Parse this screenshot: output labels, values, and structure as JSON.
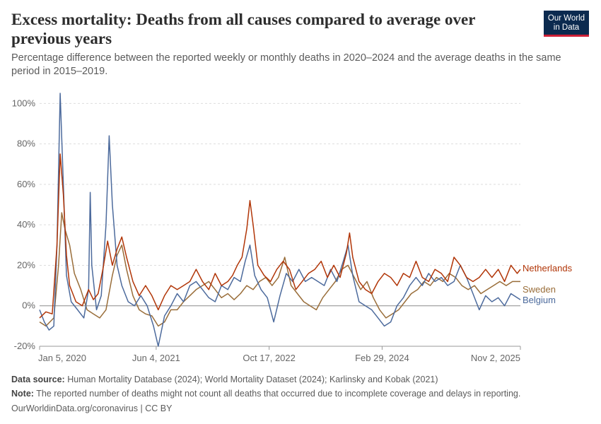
{
  "header": {
    "title": "Excess mortality: Deaths from all causes compared to average over previous years",
    "subtitle": "Percentage difference between the reported weekly or monthly deaths in 2020–2024 and the average deaths in the same period in 2015–2019.",
    "logo_line1": "Our World",
    "logo_line2": "in Data"
  },
  "footer": {
    "source_label": "Data source:",
    "source_text": "Human Mortality Database (2024); World Mortality Dataset (2024); Karlinsky and Kobak (2021)",
    "note_label": "Note:",
    "note_text": "The reported number of deaths might not count all deaths that occurred due to incomplete coverage and delays in reporting.",
    "credit": "OurWorldinData.org/coronavirus | CC BY"
  },
  "colors": {
    "Netherlands": "#b13507",
    "Sweden": "#996d39",
    "Belgium": "#4c6a9c"
  },
  "chart_data": {
    "type": "line",
    "x_axis": {
      "start": "2020-01-05",
      "end": "2025-11-02",
      "tick_labels": [
        "Jan 5, 2020",
        "Jun 4, 2021",
        "Oct 17, 2022",
        "Feb 29, 2024",
        "Nov 2, 2025"
      ],
      "tick_dates": [
        "2020-01-05",
        "2021-06-04",
        "2022-10-17",
        "2024-02-29",
        "2025-11-02"
      ]
    },
    "y_axis": {
      "ylim": [
        -20,
        105
      ],
      "ticks": [
        -20,
        0,
        20,
        40,
        60,
        80,
        100
      ],
      "tick_labels": [
        "-20%",
        "0%",
        "20%",
        "40%",
        "60%",
        "80%",
        "100%"
      ]
    },
    "grid": "horizontal-dashed",
    "legend": "end-labels-right",
    "series": [
      {
        "name": "Netherlands",
        "points": [
          [
            "2020-01-05",
            -6
          ],
          [
            "2020-02-02",
            -3
          ],
          [
            "2020-03-01",
            -4
          ],
          [
            "2020-03-22",
            30
          ],
          [
            "2020-04-05",
            75
          ],
          [
            "2020-04-19",
            55
          ],
          [
            "2020-05-03",
            25
          ],
          [
            "2020-05-17",
            10
          ],
          [
            "2020-06-14",
            2
          ],
          [
            "2020-07-12",
            0
          ],
          [
            "2020-08-09",
            8
          ],
          [
            "2020-08-30",
            3
          ],
          [
            "2020-09-20",
            6
          ],
          [
            "2020-10-11",
            18
          ],
          [
            "2020-11-01",
            32
          ],
          [
            "2020-11-22",
            20
          ],
          [
            "2020-12-13",
            28
          ],
          [
            "2021-01-03",
            34
          ],
          [
            "2021-01-24",
            24
          ],
          [
            "2021-02-21",
            12
          ],
          [
            "2021-03-21",
            5
          ],
          [
            "2021-04-18",
            10
          ],
          [
            "2021-05-16",
            5
          ],
          [
            "2021-06-13",
            -2
          ],
          [
            "2021-07-11",
            5
          ],
          [
            "2021-08-08",
            10
          ],
          [
            "2021-09-05",
            8
          ],
          [
            "2021-10-03",
            10
          ],
          [
            "2021-10-31",
            12
          ],
          [
            "2021-11-28",
            18
          ],
          [
            "2021-12-26",
            12
          ],
          [
            "2022-01-23",
            8
          ],
          [
            "2022-02-20",
            16
          ],
          [
            "2022-03-20",
            10
          ],
          [
            "2022-04-17",
            12
          ],
          [
            "2022-05-08",
            15
          ],
          [
            "2022-05-29",
            20
          ],
          [
            "2022-06-19",
            24
          ],
          [
            "2022-07-10",
            38
          ],
          [
            "2022-07-24",
            52
          ],
          [
            "2022-08-07",
            40
          ],
          [
            "2022-08-28",
            20
          ],
          [
            "2022-09-25",
            15
          ],
          [
            "2022-10-23",
            12
          ],
          [
            "2022-11-20",
            18
          ],
          [
            "2022-12-18",
            22
          ],
          [
            "2023-01-15",
            18
          ],
          [
            "2023-02-12",
            8
          ],
          [
            "2023-03-12",
            12
          ],
          [
            "2023-04-09",
            16
          ],
          [
            "2023-05-07",
            18
          ],
          [
            "2023-06-04",
            22
          ],
          [
            "2023-07-02",
            14
          ],
          [
            "2023-07-30",
            20
          ],
          [
            "2023-08-27",
            14
          ],
          [
            "2023-09-24",
            26
          ],
          [
            "2023-10-08",
            36
          ],
          [
            "2023-10-22",
            24
          ],
          [
            "2023-11-19",
            12
          ],
          [
            "2023-12-17",
            8
          ],
          [
            "2024-01-14",
            6
          ],
          [
            "2024-02-11",
            12
          ],
          [
            "2024-03-10",
            16
          ],
          [
            "2024-04-07",
            14
          ],
          [
            "2024-05-05",
            10
          ],
          [
            "2024-06-02",
            16
          ],
          [
            "2024-06-30",
            14
          ],
          [
            "2024-07-28",
            22
          ],
          [
            "2024-08-25",
            14
          ],
          [
            "2024-09-22",
            12
          ],
          [
            "2024-10-20",
            18
          ],
          [
            "2024-11-17",
            16
          ],
          [
            "2024-12-15",
            12
          ],
          [
            "2025-01-12",
            24
          ],
          [
            "2025-02-09",
            20
          ],
          [
            "2025-03-09",
            14
          ],
          [
            "2025-04-06",
            12
          ],
          [
            "2025-05-04",
            14
          ],
          [
            "2025-06-01",
            18
          ],
          [
            "2025-06-29",
            14
          ],
          [
            "2025-07-27",
            18
          ],
          [
            "2025-08-24",
            12
          ],
          [
            "2025-09-21",
            20
          ],
          [
            "2025-10-19",
            16
          ],
          [
            "2025-11-02",
            18
          ]
        ]
      },
      {
        "name": "Sweden",
        "points": [
          [
            "2020-01-05",
            -8
          ],
          [
            "2020-02-02",
            -10
          ],
          [
            "2020-03-08",
            -6
          ],
          [
            "2020-03-29",
            20
          ],
          [
            "2020-04-12",
            46
          ],
          [
            "2020-04-26",
            38
          ],
          [
            "2020-05-17",
            30
          ],
          [
            "2020-06-07",
            16
          ],
          [
            "2020-07-05",
            8
          ],
          [
            "2020-08-02",
            -2
          ],
          [
            "2020-08-30",
            -4
          ],
          [
            "2020-09-27",
            -6
          ],
          [
            "2020-10-25",
            -2
          ],
          [
            "2020-11-22",
            15
          ],
          [
            "2020-12-13",
            25
          ],
          [
            "2021-01-03",
            30
          ],
          [
            "2021-01-24",
            18
          ],
          [
            "2021-02-21",
            5
          ],
          [
            "2021-03-21",
            -2
          ],
          [
            "2021-04-18",
            -4
          ],
          [
            "2021-05-16",
            -5
          ],
          [
            "2021-06-13",
            -10
          ],
          [
            "2021-07-11",
            -8
          ],
          [
            "2021-08-08",
            -2
          ],
          [
            "2021-09-05",
            -2
          ],
          [
            "2021-10-03",
            2
          ],
          [
            "2021-10-31",
            5
          ],
          [
            "2021-11-28",
            8
          ],
          [
            "2021-12-26",
            10
          ],
          [
            "2022-01-23",
            12
          ],
          [
            "2022-02-20",
            8
          ],
          [
            "2022-03-20",
            4
          ],
          [
            "2022-04-17",
            6
          ],
          [
            "2022-05-15",
            3
          ],
          [
            "2022-06-12",
            6
          ],
          [
            "2022-07-10",
            10
          ],
          [
            "2022-08-07",
            8
          ],
          [
            "2022-09-04",
            12
          ],
          [
            "2022-10-02",
            14
          ],
          [
            "2022-10-30",
            10
          ],
          [
            "2022-11-27",
            14
          ],
          [
            "2022-12-25",
            24
          ],
          [
            "2023-01-22",
            10
          ],
          [
            "2023-02-19",
            6
          ],
          [
            "2023-03-19",
            2
          ],
          [
            "2023-04-16",
            0
          ],
          [
            "2023-05-14",
            -2
          ],
          [
            "2023-06-11",
            4
          ],
          [
            "2023-07-09",
            8
          ],
          [
            "2023-08-06",
            12
          ],
          [
            "2023-09-03",
            18
          ],
          [
            "2023-10-01",
            20
          ],
          [
            "2023-10-29",
            14
          ],
          [
            "2023-11-26",
            8
          ],
          [
            "2023-12-24",
            12
          ],
          [
            "2024-01-21",
            4
          ],
          [
            "2024-02-18",
            -2
          ],
          [
            "2024-03-17",
            -6
          ],
          [
            "2024-04-14",
            -4
          ],
          [
            "2024-05-12",
            -2
          ],
          [
            "2024-06-09",
            2
          ],
          [
            "2024-07-07",
            6
          ],
          [
            "2024-08-04",
            8
          ],
          [
            "2024-09-01",
            12
          ],
          [
            "2024-09-29",
            10
          ],
          [
            "2024-10-27",
            14
          ],
          [
            "2024-11-24",
            12
          ],
          [
            "2024-12-22",
            16
          ],
          [
            "2025-01-19",
            14
          ],
          [
            "2025-02-16",
            10
          ],
          [
            "2025-03-16",
            8
          ],
          [
            "2025-04-13",
            10
          ],
          [
            "2025-05-11",
            6
          ],
          [
            "2025-06-08",
            8
          ],
          [
            "2025-07-06",
            10
          ],
          [
            "2025-08-03",
            12
          ],
          [
            "2025-08-31",
            10
          ],
          [
            "2025-09-28",
            12
          ],
          [
            "2025-11-02",
            12
          ]
        ]
      },
      {
        "name": "Belgium",
        "points": [
          [
            "2020-01-05",
            -2
          ],
          [
            "2020-01-26",
            -8
          ],
          [
            "2020-02-16",
            -12
          ],
          [
            "2020-03-08",
            -10
          ],
          [
            "2020-03-22",
            30
          ],
          [
            "2020-04-05",
            105
          ],
          [
            "2020-04-19",
            60
          ],
          [
            "2020-05-03",
            15
          ],
          [
            "2020-05-24",
            2
          ],
          [
            "2020-06-21",
            -2
          ],
          [
            "2020-07-19",
            -6
          ],
          [
            "2020-08-09",
            8
          ],
          [
            "2020-08-16",
            56
          ],
          [
            "2020-08-23",
            20
          ],
          [
            "2020-09-13",
            -2
          ],
          [
            "2020-10-04",
            5
          ],
          [
            "2020-10-25",
            40
          ],
          [
            "2020-11-08",
            84
          ],
          [
            "2020-11-22",
            50
          ],
          [
            "2020-12-13",
            20
          ],
          [
            "2021-01-03",
            10
          ],
          [
            "2021-01-31",
            2
          ],
          [
            "2021-02-28",
            0
          ],
          [
            "2021-03-28",
            5
          ],
          [
            "2021-04-25",
            0
          ],
          [
            "2021-05-23",
            -10
          ],
          [
            "2021-06-13",
            -20
          ],
          [
            "2021-07-11",
            -5
          ],
          [
            "2021-08-08",
            0
          ],
          [
            "2021-09-05",
            6
          ],
          [
            "2021-10-03",
            2
          ],
          [
            "2021-10-31",
            10
          ],
          [
            "2021-11-28",
            12
          ],
          [
            "2021-12-26",
            8
          ],
          [
            "2022-01-23",
            4
          ],
          [
            "2022-02-20",
            2
          ],
          [
            "2022-03-20",
            10
          ],
          [
            "2022-04-17",
            8
          ],
          [
            "2022-05-15",
            14
          ],
          [
            "2022-06-12",
            12
          ],
          [
            "2022-07-03",
            22
          ],
          [
            "2022-07-24",
            30
          ],
          [
            "2022-08-14",
            15
          ],
          [
            "2022-09-11",
            8
          ],
          [
            "2022-10-09",
            4
          ],
          [
            "2022-11-06",
            -8
          ],
          [
            "2022-12-04",
            5
          ],
          [
            "2023-01-01",
            16
          ],
          [
            "2023-01-29",
            12
          ],
          [
            "2023-02-26",
            18
          ],
          [
            "2023-03-26",
            12
          ],
          [
            "2023-04-23",
            14
          ],
          [
            "2023-05-21",
            12
          ],
          [
            "2023-06-18",
            10
          ],
          [
            "2023-07-16",
            18
          ],
          [
            "2023-08-13",
            12
          ],
          [
            "2023-09-10",
            22
          ],
          [
            "2023-10-01",
            30
          ],
          [
            "2023-10-22",
            15
          ],
          [
            "2023-11-19",
            2
          ],
          [
            "2023-12-17",
            0
          ],
          [
            "2024-01-14",
            -2
          ],
          [
            "2024-02-11",
            -6
          ],
          [
            "2024-03-10",
            -10
          ],
          [
            "2024-04-07",
            -8
          ],
          [
            "2024-05-05",
            0
          ],
          [
            "2024-06-02",
            4
          ],
          [
            "2024-06-30",
            10
          ],
          [
            "2024-07-28",
            14
          ],
          [
            "2024-08-25",
            10
          ],
          [
            "2024-09-22",
            16
          ],
          [
            "2024-10-20",
            12
          ],
          [
            "2024-11-17",
            14
          ],
          [
            "2024-12-15",
            10
          ],
          [
            "2025-01-12",
            12
          ],
          [
            "2025-02-09",
            20
          ],
          [
            "2025-03-09",
            14
          ],
          [
            "2025-04-06",
            6
          ],
          [
            "2025-05-04",
            -2
          ],
          [
            "2025-06-01",
            5
          ],
          [
            "2025-06-29",
            2
          ],
          [
            "2025-07-27",
            4
          ],
          [
            "2025-08-24",
            0
          ],
          [
            "2025-09-21",
            6
          ],
          [
            "2025-10-19",
            4
          ],
          [
            "2025-11-02",
            3
          ]
        ]
      }
    ]
  }
}
